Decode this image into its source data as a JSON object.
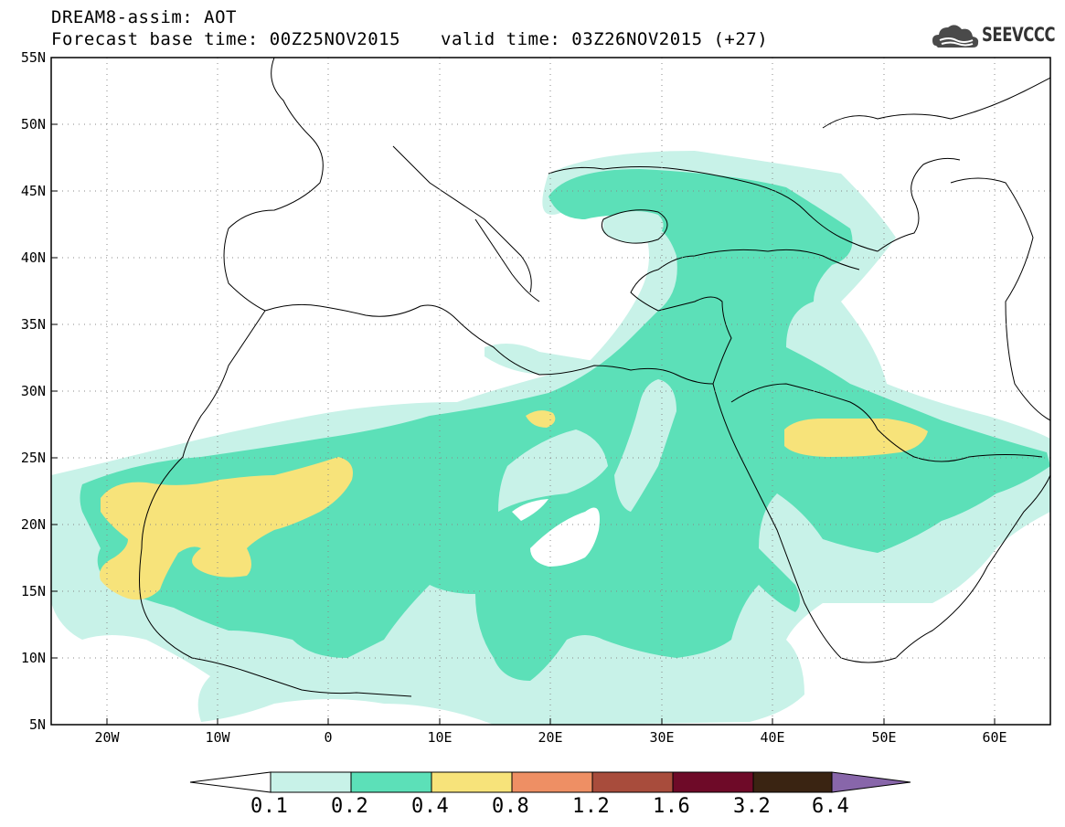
{
  "header": {
    "product": "DREAM8-assim: AOT",
    "base_time": "Forecast base time: 00Z25NOV2015",
    "valid_time": "valid time: 03Z26NOV2015 (+27)"
  },
  "logo": {
    "text": "SEEVCCC",
    "icon": "cloud-icon"
  },
  "map": {
    "lon_range": [
      -25,
      65
    ],
    "lat_range": [
      5,
      55
    ],
    "lat_ticks": [
      "55N",
      "50N",
      "45N",
      "40N",
      "35N",
      "30N",
      "25N",
      "20N",
      "15N",
      "10N",
      "5N"
    ],
    "lon_ticks": [
      "20W",
      "10W",
      "0",
      "10E",
      "20E",
      "30E",
      "40E",
      "50E",
      "60E"
    ],
    "grid": "dotted"
  },
  "colorbar": {
    "levels": [
      "0.1",
      "0.2",
      "0.4",
      "0.8",
      "1.2",
      "1.6",
      "3.2",
      "6.4"
    ],
    "colors": [
      "#ffffff",
      "#c8f2e8",
      "#5ce0b8",
      "#f7e37a",
      "#ee8f64",
      "#a84c3c",
      "#6e0a28",
      "#3a2412",
      "#8866aa"
    ]
  }
}
